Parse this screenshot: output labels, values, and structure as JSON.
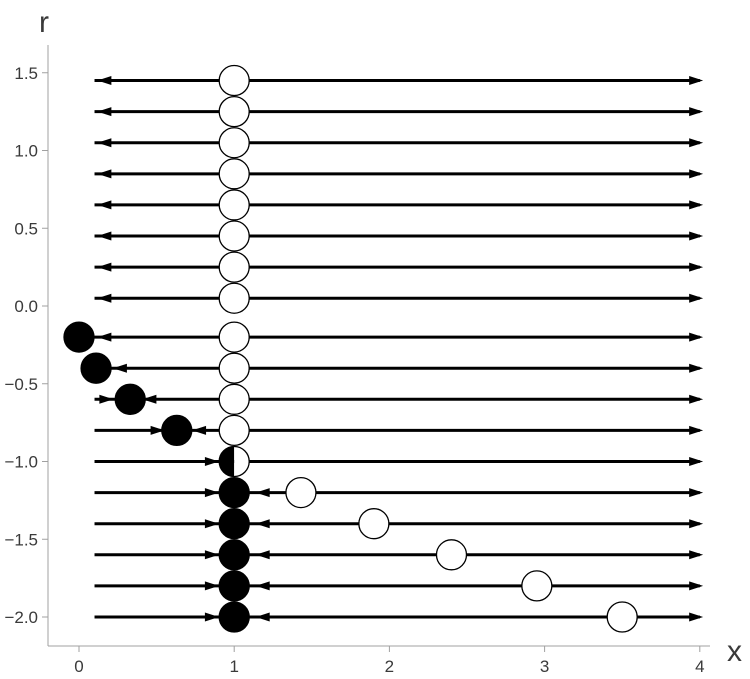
{
  "chart_data": {
    "type": "scatter",
    "title": "",
    "xlabel": "x",
    "ylabel": "r",
    "xlim": [
      -0.2,
      4
    ],
    "ylim": [
      -2.1,
      1.6
    ],
    "x_ticks": [
      {
        "value": 0,
        "label": "0"
      },
      {
        "value": 1,
        "label": "1"
      },
      {
        "value": 2,
        "label": "2"
      },
      {
        "value": 3,
        "label": "3"
      },
      {
        "value": 4,
        "label": "4"
      }
    ],
    "y_ticks": [
      {
        "value": 1.5,
        "label": "1.5"
      },
      {
        "value": 1.0,
        "label": "1.0"
      },
      {
        "value": 0.5,
        "label": "0.5"
      },
      {
        "value": 0.0,
        "label": "0.0"
      },
      {
        "value": -0.5,
        "label": "−0.5"
      },
      {
        "value": -1.0,
        "label": "−1.0"
      },
      {
        "value": -1.5,
        "label": "−1.5"
      },
      {
        "value": -2.0,
        "label": "−2.0"
      }
    ],
    "rows": [
      {
        "r": 1.45,
        "x_start": 0.1,
        "x_end": 4,
        "arrows": [
          {
            "at": 0.17,
            "dir": "left"
          },
          {
            "at": 3.97,
            "dir": "right"
          }
        ],
        "fixed_points": [
          {
            "x": 1.0,
            "fill": "open"
          }
        ]
      },
      {
        "r": 1.25,
        "x_start": 0.1,
        "x_end": 4,
        "arrows": [
          {
            "at": 0.17,
            "dir": "left"
          },
          {
            "at": 3.97,
            "dir": "right"
          }
        ],
        "fixed_points": [
          {
            "x": 1.0,
            "fill": "open"
          }
        ]
      },
      {
        "r": 1.05,
        "x_start": 0.1,
        "x_end": 4,
        "arrows": [
          {
            "at": 0.17,
            "dir": "left"
          },
          {
            "at": 3.97,
            "dir": "right"
          }
        ],
        "fixed_points": [
          {
            "x": 1.0,
            "fill": "open"
          }
        ]
      },
      {
        "r": 0.85,
        "x_start": 0.1,
        "x_end": 4,
        "arrows": [
          {
            "at": 0.17,
            "dir": "left"
          },
          {
            "at": 3.97,
            "dir": "right"
          }
        ],
        "fixed_points": [
          {
            "x": 1.0,
            "fill": "open"
          }
        ]
      },
      {
        "r": 0.65,
        "x_start": 0.1,
        "x_end": 4,
        "arrows": [
          {
            "at": 0.17,
            "dir": "left"
          },
          {
            "at": 3.97,
            "dir": "right"
          }
        ],
        "fixed_points": [
          {
            "x": 1.0,
            "fill": "open"
          }
        ]
      },
      {
        "r": 0.45,
        "x_start": 0.1,
        "x_end": 4,
        "arrows": [
          {
            "at": 0.17,
            "dir": "left"
          },
          {
            "at": 3.97,
            "dir": "right"
          }
        ],
        "fixed_points": [
          {
            "x": 1.0,
            "fill": "open"
          }
        ]
      },
      {
        "r": 0.25,
        "x_start": 0.1,
        "x_end": 4,
        "arrows": [
          {
            "at": 0.17,
            "dir": "left"
          },
          {
            "at": 3.97,
            "dir": "right"
          }
        ],
        "fixed_points": [
          {
            "x": 1.0,
            "fill": "open"
          }
        ]
      },
      {
        "r": 0.05,
        "x_start": 0.1,
        "x_end": 4,
        "arrows": [
          {
            "at": 0.17,
            "dir": "left"
          },
          {
            "at": 3.97,
            "dir": "right"
          }
        ],
        "fixed_points": [
          {
            "x": 1.0,
            "fill": "open"
          }
        ]
      },
      {
        "r": -0.2,
        "x_start": 0.0,
        "x_end": 4,
        "arrows": [
          {
            "at": 0.17,
            "dir": "left"
          },
          {
            "at": 3.97,
            "dir": "right"
          }
        ],
        "fixed_points": [
          {
            "x": 0.0,
            "fill": "solid"
          },
          {
            "x": 1.0,
            "fill": "open"
          }
        ]
      },
      {
        "r": -0.4,
        "x_start": 0.1,
        "x_end": 4,
        "arrows": [
          {
            "at": 0.27,
            "dir": "left"
          },
          {
            "at": 3.97,
            "dir": "right"
          }
        ],
        "fixed_points": [
          {
            "x": 0.11,
            "fill": "solid"
          },
          {
            "x": 1.0,
            "fill": "open"
          }
        ]
      },
      {
        "r": -0.6,
        "x_start": 0.1,
        "x_end": 4,
        "arrows": [
          {
            "at": 0.17,
            "dir": "right"
          },
          {
            "at": 0.46,
            "dir": "left"
          },
          {
            "at": 3.97,
            "dir": "right"
          }
        ],
        "fixed_points": [
          {
            "x": 0.33,
            "fill": "solid"
          },
          {
            "x": 1.0,
            "fill": "open"
          }
        ]
      },
      {
        "r": -0.8,
        "x_start": 0.1,
        "x_end": 4,
        "arrows": [
          {
            "at": 0.5,
            "dir": "right"
          },
          {
            "at": 0.78,
            "dir": "left"
          },
          {
            "at": 3.97,
            "dir": "right"
          }
        ],
        "fixed_points": [
          {
            "x": 0.63,
            "fill": "solid"
          },
          {
            "x": 1.0,
            "fill": "open"
          }
        ]
      },
      {
        "r": -1.0,
        "x_start": 0.1,
        "x_end": 4,
        "arrows": [
          {
            "at": 0.85,
            "dir": "right"
          },
          {
            "at": 3.97,
            "dir": "right"
          }
        ],
        "fixed_points": [
          {
            "x": 1.0,
            "fill": "half"
          }
        ]
      },
      {
        "r": -1.2,
        "x_start": 0.1,
        "x_end": 4,
        "arrows": [
          {
            "at": 0.85,
            "dir": "right"
          },
          {
            "at": 1.19,
            "dir": "left"
          },
          {
            "at": 3.97,
            "dir": "right"
          }
        ],
        "fixed_points": [
          {
            "x": 1.0,
            "fill": "solid"
          },
          {
            "x": 1.43,
            "fill": "open"
          }
        ]
      },
      {
        "r": -1.4,
        "x_start": 0.1,
        "x_end": 4,
        "arrows": [
          {
            "at": 0.85,
            "dir": "right"
          },
          {
            "at": 1.19,
            "dir": "left"
          },
          {
            "at": 3.97,
            "dir": "right"
          }
        ],
        "fixed_points": [
          {
            "x": 1.0,
            "fill": "solid"
          },
          {
            "x": 1.9,
            "fill": "open"
          }
        ]
      },
      {
        "r": -1.6,
        "x_start": 0.1,
        "x_end": 4,
        "arrows": [
          {
            "at": 0.85,
            "dir": "right"
          },
          {
            "at": 1.19,
            "dir": "left"
          },
          {
            "at": 3.97,
            "dir": "right"
          }
        ],
        "fixed_points": [
          {
            "x": 1.0,
            "fill": "solid"
          },
          {
            "x": 2.4,
            "fill": "open"
          }
        ]
      },
      {
        "r": -1.8,
        "x_start": 0.1,
        "x_end": 4,
        "arrows": [
          {
            "at": 0.85,
            "dir": "right"
          },
          {
            "at": 1.19,
            "dir": "left"
          },
          {
            "at": 3.97,
            "dir": "right"
          }
        ],
        "fixed_points": [
          {
            "x": 1.0,
            "fill": "solid"
          },
          {
            "x": 2.95,
            "fill": "open"
          }
        ]
      },
      {
        "r": -2.0,
        "x_start": 0.1,
        "x_end": 4,
        "arrows": [
          {
            "at": 0.85,
            "dir": "right"
          },
          {
            "at": 1.19,
            "dir": "left"
          },
          {
            "at": 3.97,
            "dir": "right"
          }
        ],
        "fixed_points": [
          {
            "x": 1.0,
            "fill": "solid"
          },
          {
            "x": 3.5,
            "fill": "open"
          }
        ]
      }
    ],
    "grid": false,
    "legend": "none",
    "colors": {
      "line": "#000000",
      "solid_point": "#000000",
      "open_point": "#ffffff",
      "axis": "#a0a0a0",
      "text": "#3a3a3a"
    }
  }
}
